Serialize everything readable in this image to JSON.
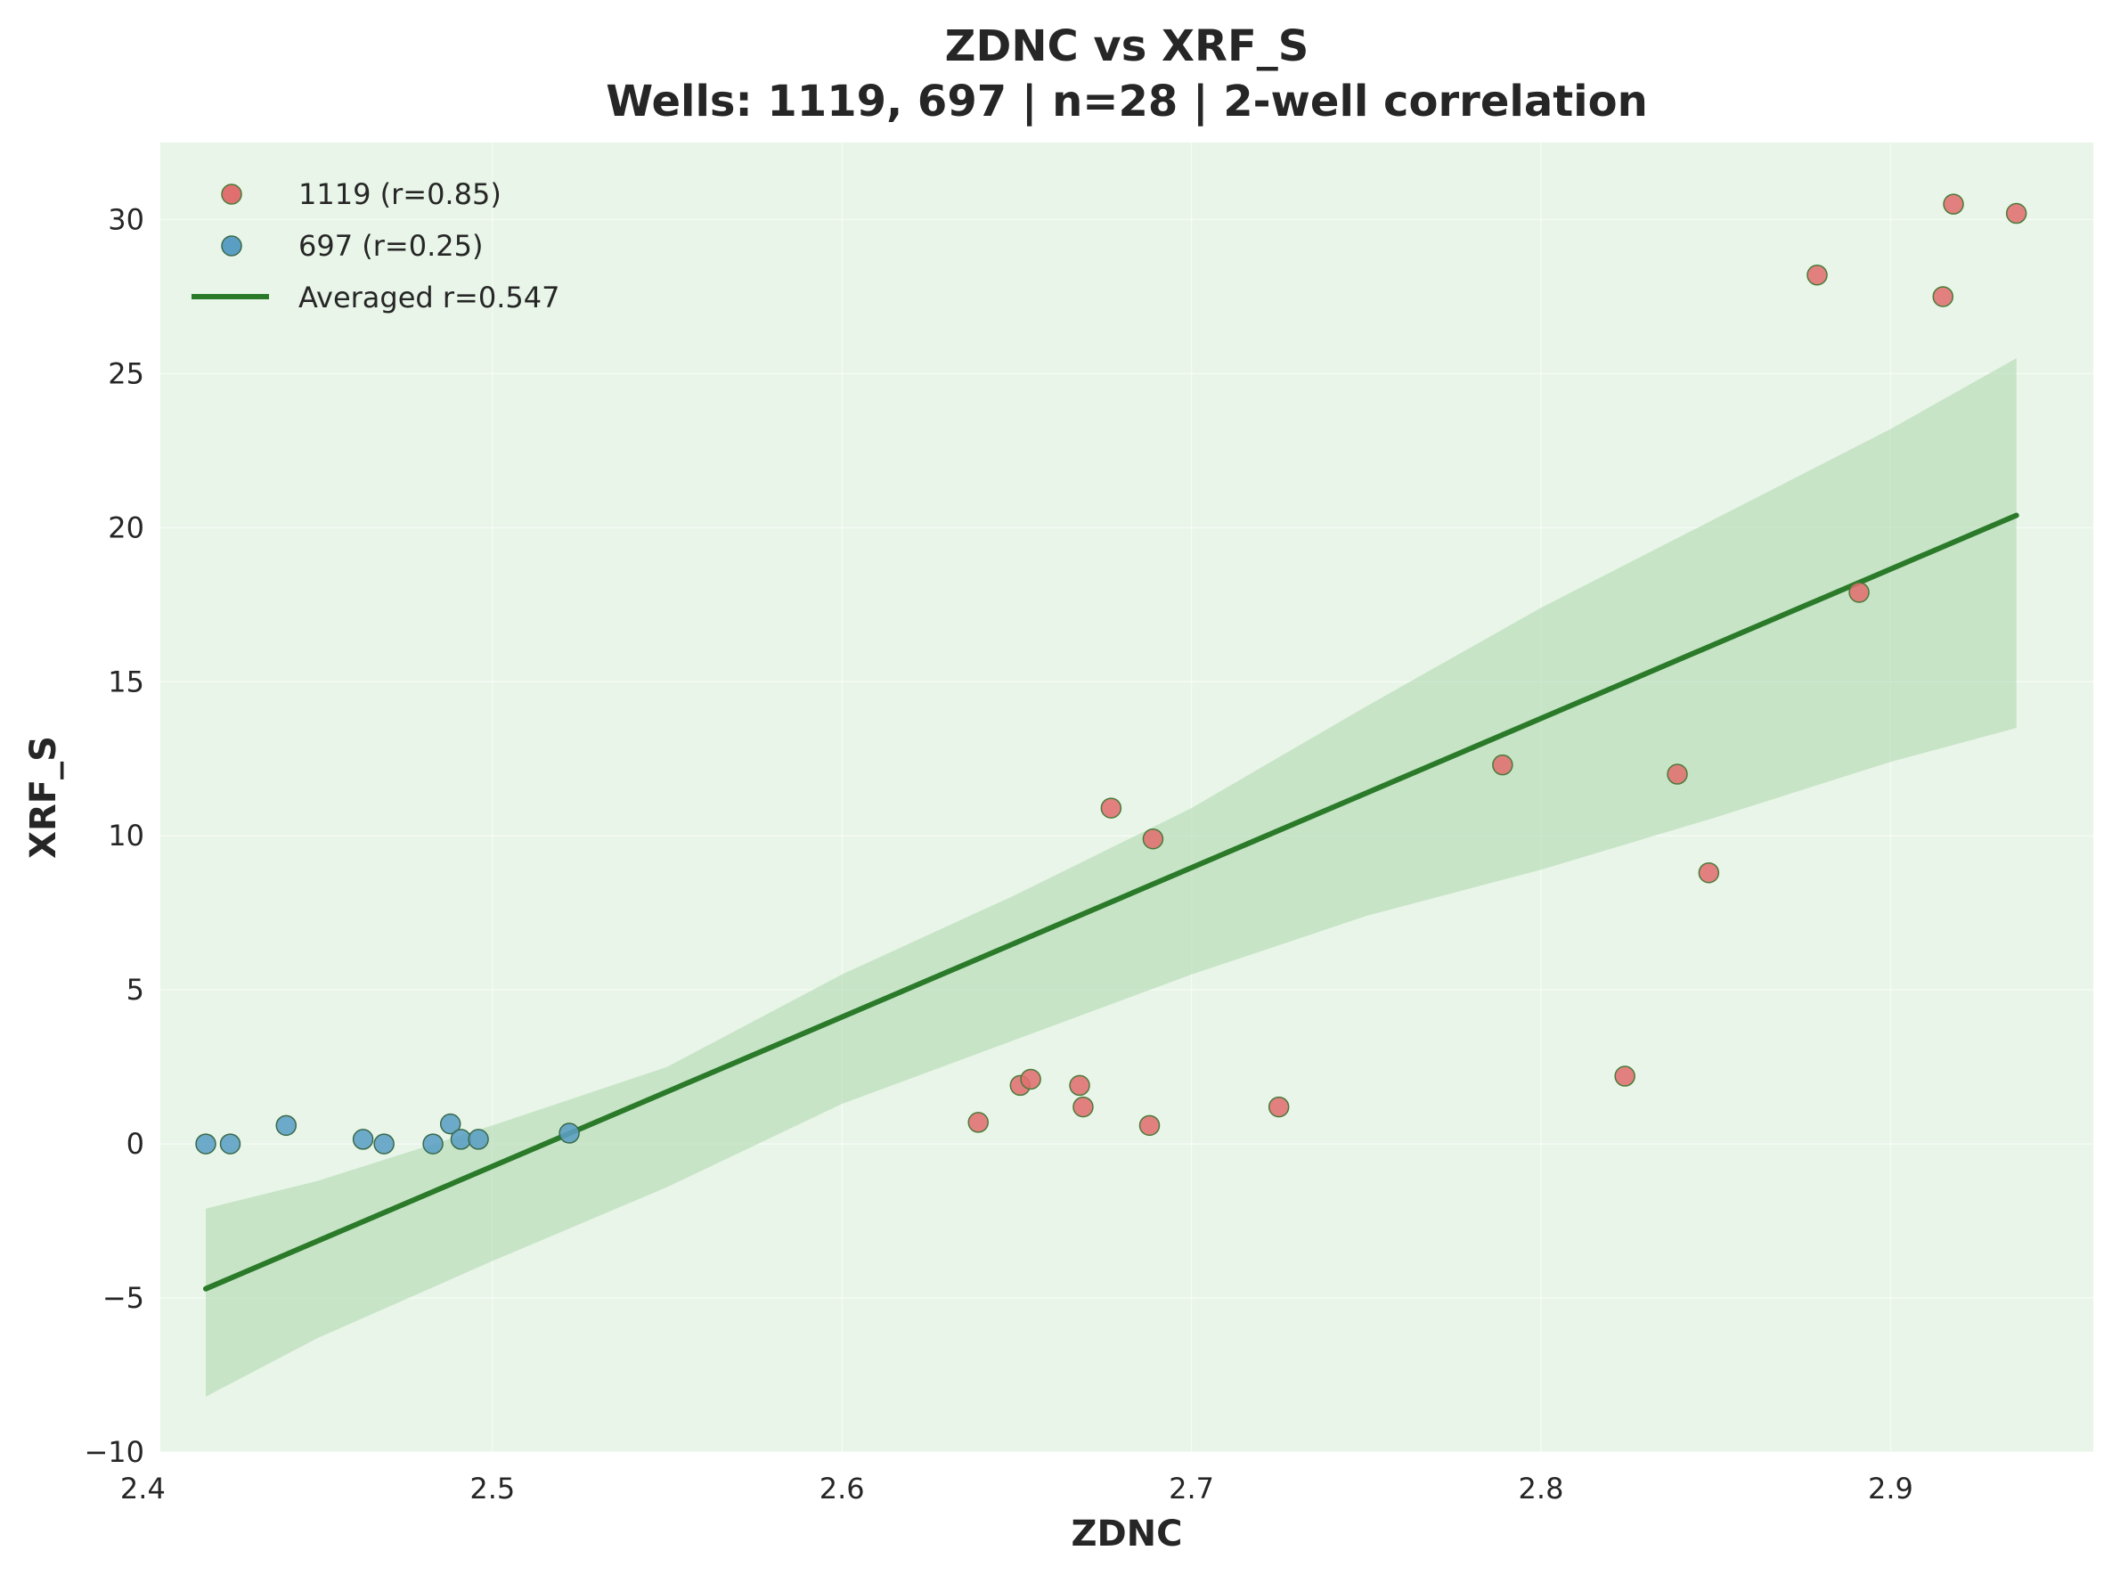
{
  "chart_data": {
    "type": "scatter",
    "title": "ZDNC vs XRF_S",
    "subtitle": "Wells: 1119, 697 | n=28 | 2-well correlation",
    "xlabel": "ZDNC",
    "ylabel": "XRF_S",
    "xlim": [
      2.405,
      2.958
    ],
    "ylim": [
      -10,
      32.5
    ],
    "xticks": [
      2.4,
      2.5,
      2.6,
      2.7,
      2.8,
      2.9
    ],
    "xtick_labels": [
      "2.4",
      "2.5",
      "2.6",
      "2.7",
      "2.8",
      "2.9"
    ],
    "yticks": [
      -10,
      -5,
      0,
      5,
      10,
      15,
      20,
      25,
      30
    ],
    "ytick_labels": [
      "−10",
      "−5",
      "0",
      "5",
      "10",
      "15",
      "20",
      "25",
      "30"
    ],
    "grid": true,
    "legend_position": "top-left",
    "background_color": "#e8f5e8",
    "series": [
      {
        "name": "1119 (r=0.85)",
        "kind": "scatter",
        "color": "#e07070",
        "edge_color": "#4a7a3a",
        "points": [
          [
            2.639,
            0.7
          ],
          [
            2.651,
            1.9
          ],
          [
            2.654,
            2.1
          ],
          [
            2.668,
            1.9
          ],
          [
            2.669,
            1.2
          ],
          [
            2.677,
            10.9
          ],
          [
            2.688,
            0.6
          ],
          [
            2.689,
            9.9
          ],
          [
            2.725,
            1.2
          ],
          [
            2.789,
            12.3
          ],
          [
            2.824,
            2.2
          ],
          [
            2.839,
            12.0
          ],
          [
            2.848,
            8.8
          ],
          [
            2.879,
            28.2
          ],
          [
            2.891,
            17.9
          ],
          [
            2.915,
            27.5
          ],
          [
            2.918,
            30.5
          ],
          [
            2.936,
            30.2
          ]
        ]
      },
      {
        "name": "697 (r=0.25)",
        "kind": "scatter",
        "color": "#5b9ec4",
        "edge_color": "#3a6a4a",
        "points": [
          [
            2.418,
            0.0
          ],
          [
            2.425,
            0.0
          ],
          [
            2.441,
            0.6
          ],
          [
            2.463,
            0.15
          ],
          [
            2.469,
            0.0
          ],
          [
            2.483,
            0.0
          ],
          [
            2.488,
            0.65
          ],
          [
            2.491,
            0.15
          ],
          [
            2.496,
            0.15
          ],
          [
            2.522,
            0.35
          ]
        ]
      },
      {
        "name": "Averaged r=0.547",
        "kind": "line",
        "color": "#2a7a2a",
        "points": [
          [
            2.418,
            -4.7
          ],
          [
            2.936,
            20.4
          ]
        ]
      }
    ],
    "confidence_band": {
      "color": "#b0d8b0",
      "x": [
        2.418,
        2.45,
        2.5,
        2.55,
        2.6,
        2.65,
        2.7,
        2.75,
        2.8,
        2.85,
        2.9,
        2.936
      ],
      "lower": [
        -8.2,
        -6.3,
        -3.8,
        -1.4,
        1.3,
        3.4,
        5.5,
        7.4,
        8.9,
        10.6,
        12.4,
        13.5
      ],
      "upper": [
        -2.1,
        -1.2,
        0.6,
        2.5,
        5.5,
        8.1,
        10.9,
        14.2,
        17.4,
        20.3,
        23.2,
        25.5
      ]
    }
  }
}
